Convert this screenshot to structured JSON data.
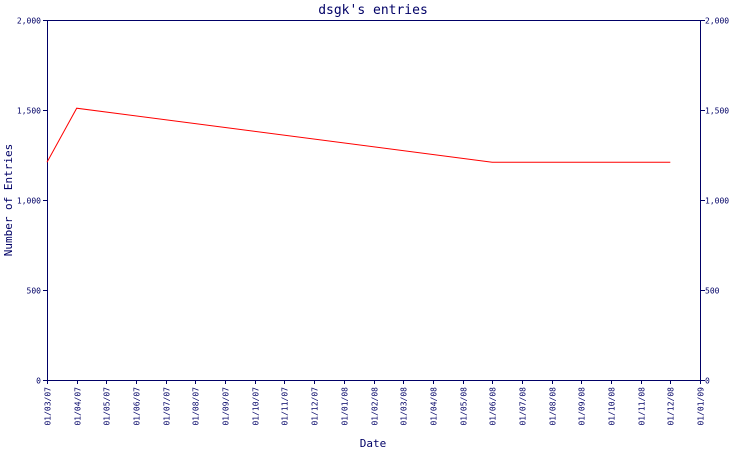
{
  "chart_data": {
    "type": "line",
    "title": "dsgk's entries",
    "xlabel": "Date",
    "ylabel": "Number of Entries",
    "categories": [
      "01/03/07",
      "01/04/07",
      "01/05/07",
      "01/06/07",
      "01/07/07",
      "01/08/07",
      "01/09/07",
      "01/10/07",
      "01/11/07",
      "01/12/07",
      "01/01/08",
      "01/02/08",
      "01/03/08",
      "01/04/08",
      "01/05/08",
      "01/06/08",
      "01/07/08",
      "01/08/08",
      "01/09/08",
      "01/10/08",
      "01/11/08",
      "01/12/08",
      "01/01/09"
    ],
    "series": [
      {
        "x": [
          "01/03/07",
          "01/04/07",
          "01/06/08",
          "01/12/08"
        ],
        "values": [
          1210,
          1510,
          1210,
          1210
        ]
      }
    ],
    "ylim": [
      0,
      2000
    ],
    "yticks": [
      0,
      500,
      1000,
      1500,
      2000
    ],
    "ytick_labels": [
      "0",
      "500",
      "1,000",
      "1,500",
      "2,000"
    ],
    "y_axis_right": true,
    "grid": false,
    "legend": false
  },
  "colors": {
    "axis": "#000066",
    "text": "#000066",
    "line": "#ff0000",
    "background": "#ffffff"
  }
}
